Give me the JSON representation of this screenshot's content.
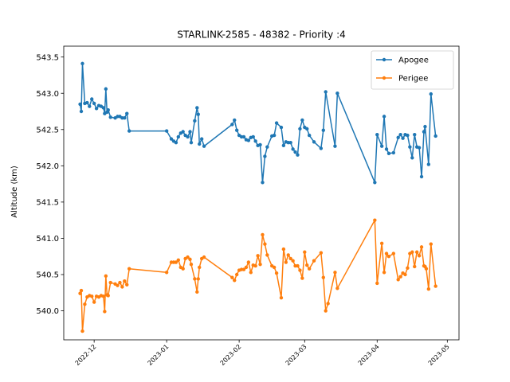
{
  "chart_data": {
    "type": "line",
    "title": "STARLINK-2585 - 48382 - Priority :4",
    "xlabel": "",
    "ylabel": "Altitude (km)",
    "ylim": [
      539.6,
      543.65
    ],
    "xlim": [
      "2022-11-18",
      "2023-05-06"
    ],
    "yticks": [
      540.0,
      540.5,
      541.0,
      541.5,
      542.0,
      542.5,
      543.0,
      543.5
    ],
    "ytick_labels": [
      "540.0",
      "540.5",
      "541.0",
      "541.5",
      "542.0",
      "542.5",
      "543.0",
      "543.5"
    ],
    "xticks": [
      "2022-12-01",
      "2023-01-01",
      "2023-02-01",
      "2023-03-01",
      "2023-04-01",
      "2023-05-01"
    ],
    "xtick_labels": [
      "2022-12",
      "2023-01",
      "2023-02",
      "2023-03",
      "2023-04",
      "2023-05"
    ],
    "grid": false,
    "legend_position": "top-right",
    "series": [
      {
        "name": "Apogee",
        "color": "#1f77b4",
        "points": [
          [
            "2022-11-25",
            542.85
          ],
          [
            "2022-11-25T12",
            542.75
          ],
          [
            "2022-11-26",
            543.41
          ],
          [
            "2022-11-27",
            542.86
          ],
          [
            "2022-11-28",
            542.87
          ],
          [
            "2022-11-29",
            542.82
          ],
          [
            "2022-11-30",
            542.92
          ],
          [
            "2022-12-01",
            542.86
          ],
          [
            "2022-12-02",
            542.79
          ],
          [
            "2022-12-03",
            542.83
          ],
          [
            "2022-12-04",
            542.82
          ],
          [
            "2022-12-05",
            542.8
          ],
          [
            "2022-12-05T12",
            542.72
          ],
          [
            "2022-12-06",
            543.06
          ],
          [
            "2022-12-06T12",
            542.74
          ],
          [
            "2022-12-07",
            542.77
          ],
          [
            "2022-12-08",
            542.67
          ],
          [
            "2022-12-10",
            542.66
          ],
          [
            "2022-12-11",
            542.68
          ],
          [
            "2022-12-12",
            542.68
          ],
          [
            "2022-12-13",
            542.66
          ],
          [
            "2022-12-14",
            542.66
          ],
          [
            "2022-12-15",
            542.72
          ],
          [
            "2022-12-16",
            542.48
          ],
          [
            "2023-01-01",
            542.48
          ],
          [
            "2023-01-03",
            542.37
          ],
          [
            "2023-01-04",
            542.34
          ],
          [
            "2023-01-05",
            542.32
          ],
          [
            "2023-01-06",
            542.4
          ],
          [
            "2023-01-07",
            542.45
          ],
          [
            "2023-01-08",
            542.47
          ],
          [
            "2023-01-09",
            542.42
          ],
          [
            "2023-01-10",
            542.4
          ],
          [
            "2023-01-11",
            542.47
          ],
          [
            "2023-01-11T12",
            542.32
          ],
          [
            "2023-01-13",
            542.62
          ],
          [
            "2023-01-14",
            542.8
          ],
          [
            "2023-01-14T12",
            542.71
          ],
          [
            "2023-01-15",
            542.3
          ],
          [
            "2023-01-16",
            542.37
          ],
          [
            "2023-01-17",
            542.27
          ],
          [
            "2023-01-29",
            542.57
          ],
          [
            "2023-01-30",
            542.63
          ],
          [
            "2023-01-31",
            542.49
          ],
          [
            "2023-02-01",
            542.42
          ],
          [
            "2023-02-02",
            542.4
          ],
          [
            "2023-02-03",
            542.4
          ],
          [
            "2023-02-04",
            542.36
          ],
          [
            "2023-02-05",
            542.35
          ],
          [
            "2023-02-06",
            542.39
          ],
          [
            "2023-02-07",
            542.4
          ],
          [
            "2023-02-08",
            542.34
          ],
          [
            "2023-02-09",
            542.28
          ],
          [
            "2023-02-10",
            542.29
          ],
          [
            "2023-02-11",
            541.77
          ],
          [
            "2023-02-12",
            542.13
          ],
          [
            "2023-02-13",
            542.26
          ],
          [
            "2023-02-15",
            542.41
          ],
          [
            "2023-02-16",
            542.42
          ],
          [
            "2023-02-17",
            542.59
          ],
          [
            "2023-02-19",
            542.53
          ],
          [
            "2023-02-20",
            542.28
          ],
          [
            "2023-02-21",
            542.33
          ],
          [
            "2023-02-22",
            542.32
          ],
          [
            "2023-02-23",
            542.32
          ],
          [
            "2023-02-24",
            542.23
          ],
          [
            "2023-02-25",
            542.19
          ],
          [
            "2023-02-26",
            542.15
          ],
          [
            "2023-02-27",
            542.51
          ],
          [
            "2023-02-28",
            542.63
          ],
          [
            "2023-03-01",
            542.53
          ],
          [
            "2023-03-02",
            542.51
          ],
          [
            "2023-03-03",
            542.42
          ],
          [
            "2023-03-05",
            542.33
          ],
          [
            "2023-03-08",
            542.24
          ],
          [
            "2023-03-09",
            542.49
          ],
          [
            "2023-03-10",
            543.02
          ],
          [
            "2023-03-14",
            542.27
          ],
          [
            "2023-03-15",
            543.0
          ],
          [
            "2023-03-31",
            541.77
          ],
          [
            "2023-04-01",
            542.43
          ],
          [
            "2023-04-03",
            542.27
          ],
          [
            "2023-04-04",
            542.68
          ],
          [
            "2023-04-05",
            542.23
          ],
          [
            "2023-04-06",
            542.17
          ],
          [
            "2023-04-08",
            542.18
          ],
          [
            "2023-04-10",
            542.39
          ],
          [
            "2023-04-11",
            542.43
          ],
          [
            "2023-04-12",
            542.38
          ],
          [
            "2023-04-13",
            542.43
          ],
          [
            "2023-04-14",
            542.42
          ],
          [
            "2023-04-15",
            542.26
          ],
          [
            "2023-04-16",
            542.11
          ],
          [
            "2023-04-17",
            542.43
          ],
          [
            "2023-04-18",
            542.26
          ],
          [
            "2023-04-19",
            542.25
          ],
          [
            "2023-04-20",
            541.85
          ],
          [
            "2023-04-21",
            542.47
          ],
          [
            "2023-04-21T12",
            542.54
          ],
          [
            "2023-04-23",
            542.02
          ],
          [
            "2023-04-24",
            542.99
          ],
          [
            "2023-04-26",
            542.41
          ]
        ]
      },
      {
        "name": "Perigee",
        "color": "#ff7f0e",
        "points": [
          [
            "2022-11-25",
            540.24
          ],
          [
            "2022-11-25T12",
            540.28
          ],
          [
            "2022-11-26",
            539.72
          ],
          [
            "2022-11-27",
            540.09
          ],
          [
            "2022-11-28",
            540.19
          ],
          [
            "2022-11-29",
            540.21
          ],
          [
            "2022-11-30",
            540.2
          ],
          [
            "2022-12-01",
            540.12
          ],
          [
            "2022-12-02",
            540.2
          ],
          [
            "2022-12-03",
            540.19
          ],
          [
            "2022-12-04",
            540.21
          ],
          [
            "2022-12-05",
            540.2
          ],
          [
            "2022-12-05T12",
            539.99
          ],
          [
            "2022-12-06",
            540.48
          ],
          [
            "2022-12-06T12",
            540.22
          ],
          [
            "2022-12-07",
            540.21
          ],
          [
            "2022-12-08",
            540.39
          ],
          [
            "2022-12-10",
            540.37
          ],
          [
            "2022-12-11",
            540.35
          ],
          [
            "2022-12-12",
            540.39
          ],
          [
            "2022-12-13",
            540.33
          ],
          [
            "2022-12-14",
            540.41
          ],
          [
            "2022-12-15",
            540.36
          ],
          [
            "2022-12-16",
            540.58
          ],
          [
            "2023-01-01",
            540.53
          ],
          [
            "2023-01-03",
            540.67
          ],
          [
            "2023-01-04",
            540.67
          ],
          [
            "2023-01-05",
            540.67
          ],
          [
            "2023-01-06",
            540.7
          ],
          [
            "2023-01-07",
            540.6
          ],
          [
            "2023-01-08",
            540.58
          ],
          [
            "2023-01-09",
            540.72
          ],
          [
            "2023-01-10",
            540.74
          ],
          [
            "2023-01-11",
            540.71
          ],
          [
            "2023-01-11T12",
            540.64
          ],
          [
            "2023-01-13",
            540.44
          ],
          [
            "2023-01-14",
            540.26
          ],
          [
            "2023-01-14T12",
            540.44
          ],
          [
            "2023-01-15",
            540.6
          ],
          [
            "2023-01-16",
            540.72
          ],
          [
            "2023-01-17",
            540.74
          ],
          [
            "2023-01-29",
            540.46
          ],
          [
            "2023-01-30",
            540.42
          ],
          [
            "2023-01-31",
            540.5
          ],
          [
            "2023-02-01",
            540.56
          ],
          [
            "2023-02-02",
            540.57
          ],
          [
            "2023-02-03",
            540.57
          ],
          [
            "2023-02-04",
            540.6
          ],
          [
            "2023-02-05",
            540.67
          ],
          [
            "2023-02-06",
            540.53
          ],
          [
            "2023-02-07",
            540.63
          ],
          [
            "2023-02-08",
            540.62
          ],
          [
            "2023-02-09",
            540.76
          ],
          [
            "2023-02-10",
            540.64
          ],
          [
            "2023-02-11",
            541.05
          ],
          [
            "2023-02-12",
            540.92
          ],
          [
            "2023-02-13",
            540.77
          ],
          [
            "2023-02-15",
            540.62
          ],
          [
            "2023-02-16",
            540.6
          ],
          [
            "2023-02-17",
            540.52
          ],
          [
            "2023-02-19",
            540.18
          ],
          [
            "2023-02-20",
            540.85
          ],
          [
            "2023-02-21",
            540.67
          ],
          [
            "2023-02-22",
            540.77
          ],
          [
            "2023-02-23",
            540.72
          ],
          [
            "2023-02-24",
            540.69
          ],
          [
            "2023-02-25",
            540.62
          ],
          [
            "2023-02-26",
            540.62
          ],
          [
            "2023-02-27",
            540.56
          ],
          [
            "2023-02-28",
            540.45
          ],
          [
            "2023-03-01",
            540.81
          ],
          [
            "2023-03-02",
            540.63
          ],
          [
            "2023-03-03",
            540.58
          ],
          [
            "2023-03-05",
            540.69
          ],
          [
            "2023-03-08",
            540.8
          ],
          [
            "2023-03-09",
            540.46
          ],
          [
            "2023-03-10",
            540.0
          ],
          [
            "2023-03-11",
            540.1
          ],
          [
            "2023-03-14",
            540.53
          ],
          [
            "2023-03-15",
            540.31
          ],
          [
            "2023-03-31",
            541.25
          ],
          [
            "2023-04-01",
            540.38
          ],
          [
            "2023-04-03",
            540.93
          ],
          [
            "2023-04-04",
            540.53
          ],
          [
            "2023-04-05",
            540.79
          ],
          [
            "2023-04-06",
            540.75
          ],
          [
            "2023-04-08",
            540.79
          ],
          [
            "2023-04-10",
            540.43
          ],
          [
            "2023-04-11",
            540.47
          ],
          [
            "2023-04-12",
            540.52
          ],
          [
            "2023-04-13",
            540.5
          ],
          [
            "2023-04-14",
            540.59
          ],
          [
            "2023-04-15",
            540.79
          ],
          [
            "2023-04-16",
            540.81
          ],
          [
            "2023-04-17",
            540.61
          ],
          [
            "2023-04-18",
            540.81
          ],
          [
            "2023-04-19",
            540.76
          ],
          [
            "2023-04-20",
            540.88
          ],
          [
            "2023-04-21",
            540.62
          ],
          [
            "2023-04-21T12",
            540.61
          ],
          [
            "2023-04-22",
            540.58
          ],
          [
            "2023-04-23",
            540.3
          ],
          [
            "2023-04-24",
            540.92
          ],
          [
            "2023-04-26",
            540.34
          ]
        ]
      }
    ]
  }
}
